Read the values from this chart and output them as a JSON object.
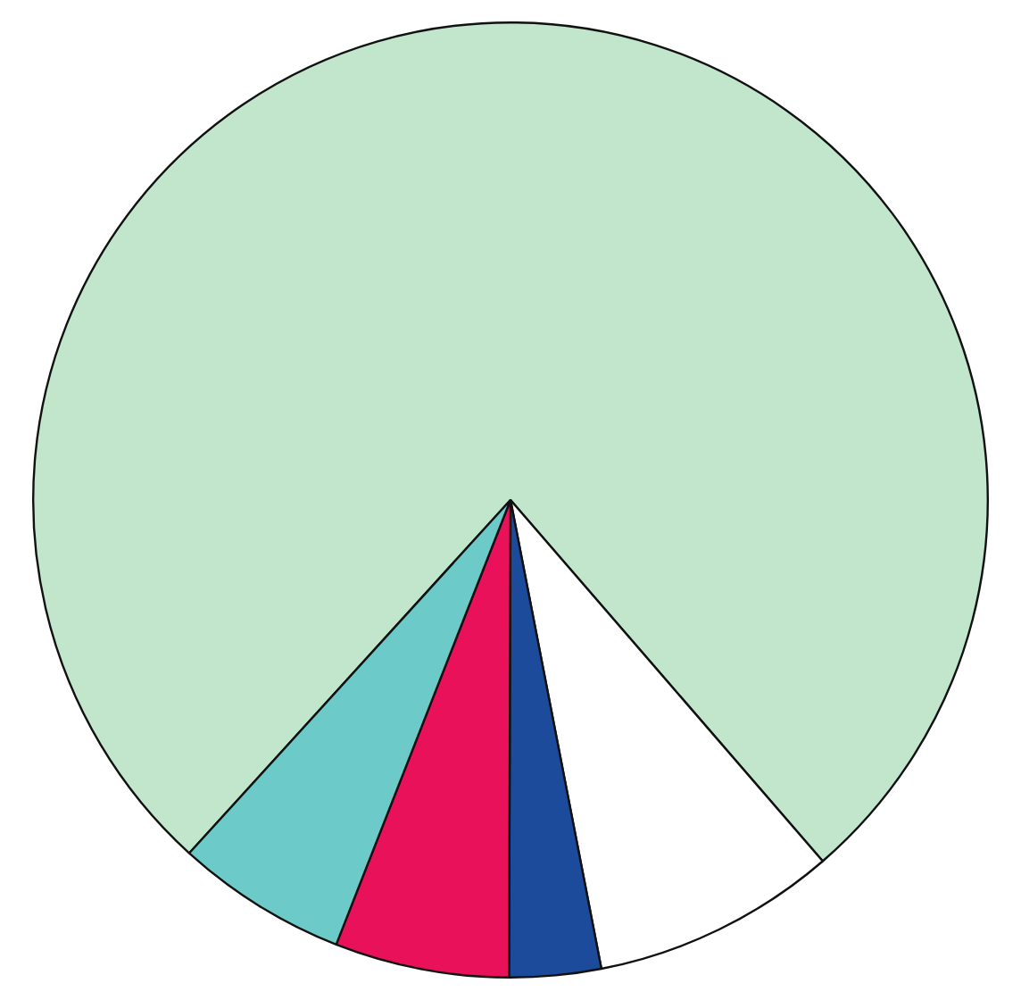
{
  "chart_data": {
    "type": "pie",
    "categories": [
      null,
      null,
      null,
      null,
      null
    ],
    "values": [
      76.9,
      8.3,
      3.1,
      5.9,
      5.8
    ],
    "colors": [
      "#c2e6cc",
      "#ffffff",
      "#1c4b9c",
      "#e8115a",
      "#6ccac9"
    ],
    "legend": false
  }
}
